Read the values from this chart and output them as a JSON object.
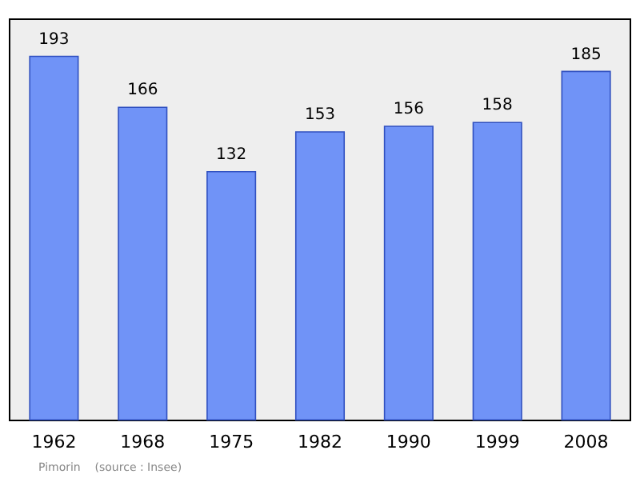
{
  "chart_data": {
    "type": "bar",
    "categories": [
      "1962",
      "1968",
      "1975",
      "1982",
      "1990",
      "1999",
      "2008"
    ],
    "values": [
      193,
      166,
      132,
      153,
      156,
      158,
      185
    ],
    "color": "#7093f7",
    "data_labels": true,
    "annotations": [
      "Pimorin    (source : Insee)"
    ]
  }
}
